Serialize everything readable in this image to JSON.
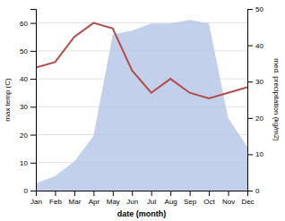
{
  "chart_data": {
    "type": "line",
    "xlabel": "date (month)",
    "ylabel": "max temp (C)",
    "y2label": "med. precipitation (kg/m2)",
    "categories": [
      "Jan",
      "Feb",
      "Mar",
      "Apr",
      "May",
      "Jun",
      "Jul",
      "Aug",
      "Sep",
      "Oct",
      "Nov",
      "Dec"
    ],
    "series": [
      {
        "type": "area",
        "axis": "y2",
        "color": "#b8c8e8",
        "values": [
          2,
          4,
          8,
          15,
          43,
          44,
          46,
          46,
          47,
          46,
          20,
          12
        ]
      },
      {
        "type": "line",
        "color": "#b54a4a",
        "values": [
          44,
          46,
          55,
          60,
          58,
          43,
          35,
          40,
          35,
          33,
          35,
          37
        ]
      }
    ],
    "ylim": [
      0,
      65
    ],
    "yticks": [
      0,
      10,
      20,
      30,
      40,
      50,
      60
    ],
    "y2lim": [
      0,
      50
    ],
    "y2ticks": [
      0,
      10,
      20,
      30,
      40,
      50
    ],
    "grid": true
  }
}
